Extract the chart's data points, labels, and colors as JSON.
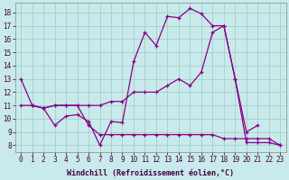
{
  "background_color": "#c8eaea",
  "grid_color": "#a0c8c8",
  "line_color": "#880088",
  "xlabel": "Windchill (Refroidissement éolien,°C)",
  "xlim_min": -0.5,
  "xlim_max": 23.5,
  "ylim_min": 7.5,
  "ylim_max": 18.7,
  "line_a_x": [
    0,
    1,
    2,
    3,
    4,
    5,
    6,
    7,
    8,
    9,
    10,
    11,
    12,
    13,
    14,
    15,
    16,
    17,
    18,
    19,
    20,
    21
  ],
  "line_a_y": [
    13.0,
    11.0,
    10.8,
    9.5,
    10.2,
    10.3,
    9.8,
    8.0,
    9.8,
    9.7,
    14.3,
    16.5,
    15.5,
    17.7,
    17.6,
    18.3,
    17.9,
    17.0,
    17.0,
    13.0,
    9.0,
    9.5
  ],
  "line_b_x": [
    0,
    1,
    2,
    3,
    4,
    5,
    6,
    7,
    8,
    9,
    10,
    11,
    12,
    13,
    14,
    15,
    16,
    17,
    18,
    19,
    20,
    21,
    22,
    23
  ],
  "line_b_y": [
    11.0,
    11.0,
    10.8,
    11.0,
    11.0,
    11.0,
    11.0,
    11.0,
    11.3,
    11.3,
    12.0,
    12.0,
    12.0,
    12.5,
    13.0,
    12.5,
    13.5,
    16.5,
    17.0,
    13.0,
    8.2,
    8.2,
    8.2,
    8.0
  ],
  "line_c_x": [
    1,
    2,
    3,
    4,
    5,
    6,
    7,
    8,
    9,
    10,
    11,
    12,
    13,
    14,
    15,
    16,
    17,
    18,
    19,
    20,
    21,
    22,
    23
  ],
  "line_c_y": [
    11.0,
    10.8,
    11.0,
    11.0,
    11.0,
    9.5,
    8.8,
    8.8,
    8.8,
    8.8,
    8.8,
    8.8,
    8.8,
    8.8,
    8.8,
    8.8,
    8.8,
    8.5,
    8.5,
    8.5,
    8.5,
    8.5,
    8.0
  ],
  "tick_fontsize": 5.5,
  "xlabel_fontsize": 6.0
}
